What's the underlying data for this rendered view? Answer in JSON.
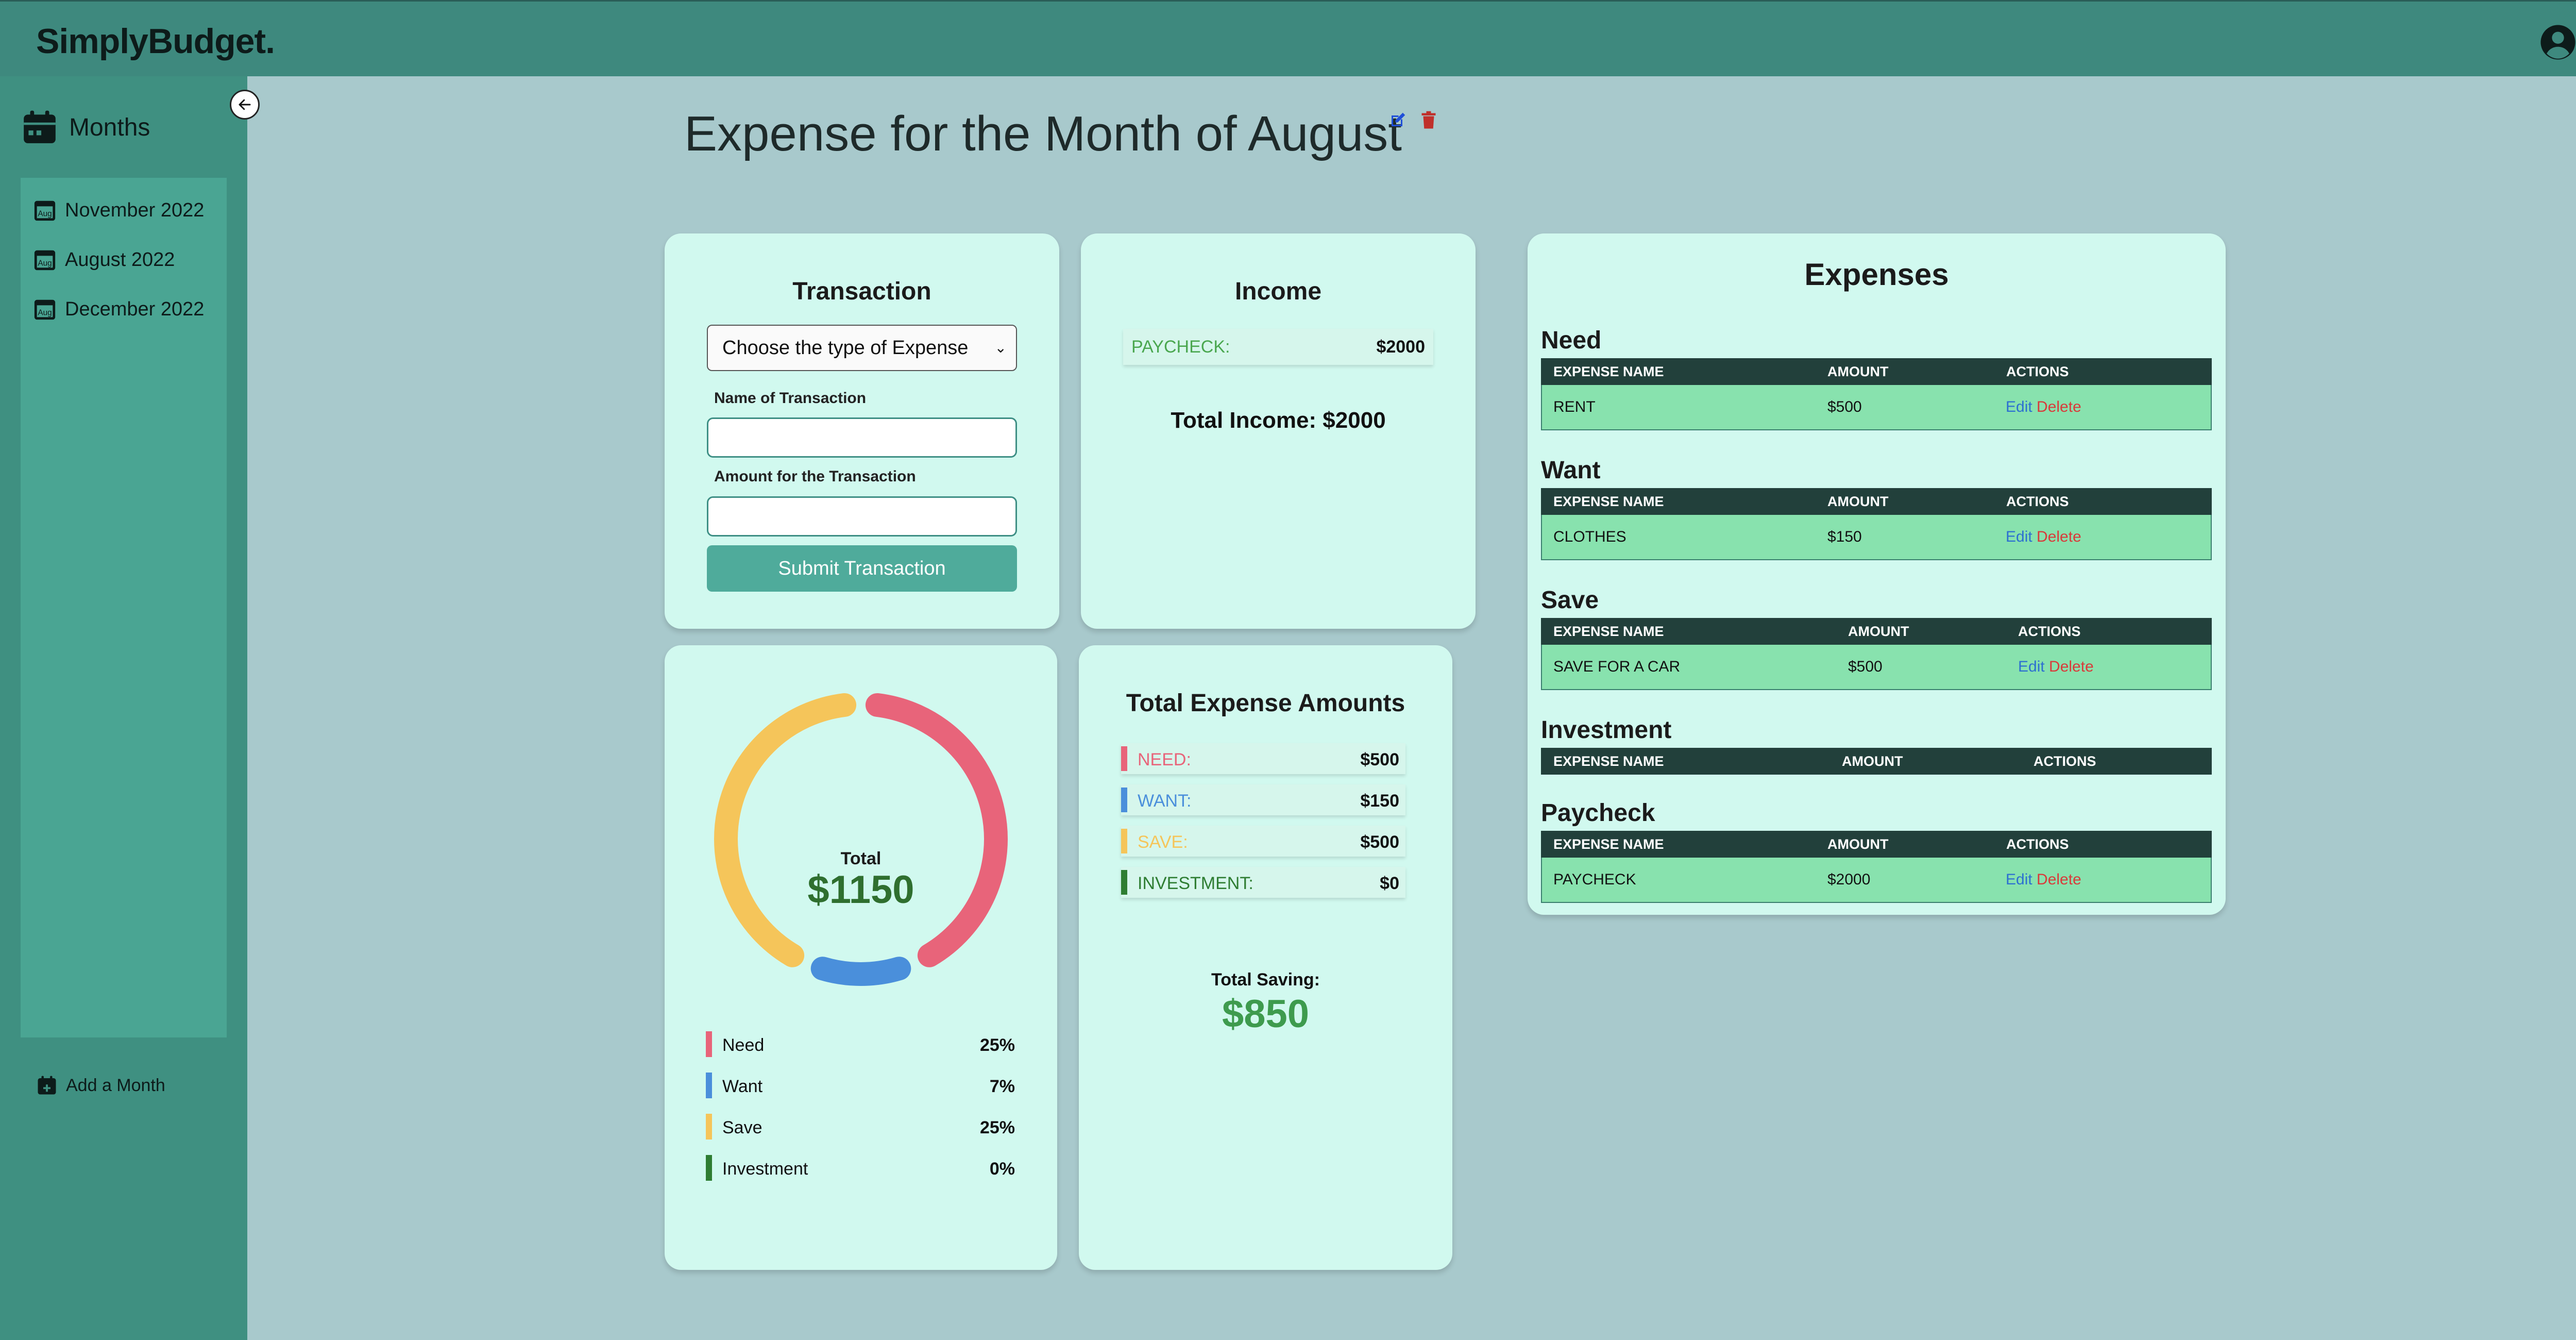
{
  "app": {
    "brand": "SimplyBudget."
  },
  "sidebar": {
    "title": "Months",
    "months": [
      {
        "label": "November 2022",
        "icon_text": "Aug"
      },
      {
        "label": "August 2022",
        "icon_text": "Aug"
      },
      {
        "label": "December 2022",
        "icon_text": "Aug"
      }
    ],
    "add_month": "Add a Month"
  },
  "page": {
    "title": "Expense for the Month of August"
  },
  "transaction": {
    "title": "Transaction",
    "select_value": "Choose the type of Expense",
    "name_label": "Name of Transaction",
    "amount_label": "Amount for the Transaction",
    "submit_label": "Submit Transaction"
  },
  "income": {
    "title": "Income",
    "items": [
      {
        "label": "PAYCHECK:",
        "amount": "$2000"
      }
    ],
    "total": "Total Income: $2000"
  },
  "expenses": {
    "title": "Expenses",
    "headers": {
      "name": "EXPENSE NAME",
      "amount": "AMOUNT",
      "actions": "ACTIONS"
    },
    "edit_label": "Edit",
    "delete_label": "Delete",
    "sections": [
      {
        "title": "Need",
        "rows": [
          {
            "name": "RENT",
            "amount": "$500"
          }
        ]
      },
      {
        "title": "Want",
        "rows": [
          {
            "name": "CLOTHES",
            "amount": "$150"
          }
        ]
      },
      {
        "title": "Save",
        "rows": [
          {
            "name": "SAVE FOR A CAR",
            "amount": "$500"
          }
        ]
      },
      {
        "title": "Investment",
        "rows": []
      },
      {
        "title": "Paycheck",
        "rows": [
          {
            "name": "PAYCHECK",
            "amount": "$2000"
          }
        ]
      }
    ]
  },
  "chart_data": {
    "type": "pie",
    "center_label": "Total",
    "center_value": "$1150",
    "categories": [
      "Need",
      "Want",
      "Save",
      "Investment"
    ],
    "values": [
      500,
      150,
      500,
      0
    ],
    "percent_labels": [
      "25%",
      "7%",
      "25%",
      "0%"
    ],
    "colors": [
      "#e8647a",
      "#4a8fdb",
      "#f5c55a",
      "#2e7d32"
    ]
  },
  "totals": {
    "title": "Total Expense Amounts",
    "items": [
      {
        "label": "NEED:",
        "amount": "$500",
        "color": "#e8647a"
      },
      {
        "label": "WANT:",
        "amount": "$150",
        "color": "#4a8fdb"
      },
      {
        "label": "SAVE:",
        "amount": "$500",
        "color": "#f5c55a"
      },
      {
        "label": "INVESTMENT:",
        "amount": "$0",
        "color": "#2e7d32"
      }
    ],
    "saving_label": "Total Saving:",
    "saving_value": "$850"
  },
  "colors": {
    "topbar": "#3e897e",
    "sidebar": "#3f9081",
    "card": "#d1f9ef",
    "table_header": "#22403b",
    "table_row": "#88e2ae",
    "submit": "#4fab9b"
  }
}
